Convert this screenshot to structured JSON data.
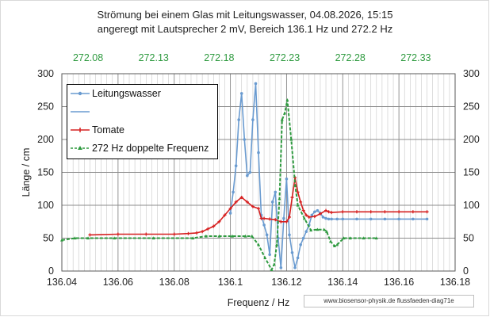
{
  "chart_data": {
    "type": "line",
    "title": [
      "Strömung bei einem Glas mit  Leitungswasser, 04.08.2026, 15:15",
      "angeregt mit Lautsprecher 2 mV, Bereich 136.1 Hz und 272.2 Hz"
    ],
    "xlabel": "Frequenz / Hz",
    "ylabel": "Länge / cm",
    "xlim": [
      136.04,
      136.18
    ],
    "ylim": [
      0,
      300
    ],
    "x_ticks": [
      "136.04",
      "136.06",
      "136.08",
      "136.1",
      "136.12",
      "136.14",
      "136.16",
      "136.18"
    ],
    "y_ticks": [
      "0",
      "50",
      "100",
      "150",
      "200",
      "250",
      "300"
    ],
    "top_axis": {
      "xlim": [
        272.06,
        272.36
      ],
      "tick_labels": [
        "272.08",
        "272.13",
        "272.18",
        "272.23",
        "272.28",
        "272.33"
      ],
      "tick_values": [
        272.08,
        272.13,
        272.18,
        272.23,
        272.28,
        272.33
      ],
      "color": "#2e9a3f"
    },
    "grid": true,
    "legend_position": "top-left",
    "series": [
      {
        "name": "Leitungswasser",
        "color": "#6a9bd0",
        "marker": "circle",
        "axis": "bottom",
        "x": [
          136.1,
          136.101,
          136.102,
          136.103,
          136.104,
          136.105,
          136.106,
          136.107,
          136.108,
          136.109,
          136.11,
          136.111,
          136.112,
          136.113,
          136.114,
          136.115,
          136.116,
          136.117,
          136.118,
          136.119,
          136.12,
          136.121,
          136.122,
          136.123,
          136.124,
          136.125,
          136.126,
          136.127,
          136.128,
          136.129,
          136.13,
          136.131,
          136.132,
          136.133,
          136.134,
          136.135,
          136.136,
          136.138,
          136.14,
          136.145,
          136.15,
          136.155,
          136.16,
          136.165,
          136.17
        ],
        "y": [
          88,
          120,
          160,
          230,
          270,
          200,
          145,
          150,
          230,
          285,
          180,
          85,
          70,
          55,
          25,
          105,
          120,
          50,
          5,
          80,
          140,
          55,
          28,
          5,
          20,
          40,
          50,
          60,
          70,
          85,
          90,
          92,
          88,
          82,
          80,
          79,
          79,
          79,
          79,
          79,
          79,
          79,
          79,
          79,
          79
        ]
      },
      {
        "name": "Tomate",
        "color": "#d62020",
        "marker": "plus",
        "axis": "bottom",
        "x": [
          136.05,
          136.06,
          136.07,
          136.08,
          136.085,
          136.088,
          136.09,
          136.092,
          136.094,
          136.096,
          136.098,
          136.1,
          136.102,
          136.104,
          136.106,
          136.108,
          136.11,
          136.111,
          136.112,
          136.114,
          136.116,
          136.118,
          136.12,
          136.121,
          136.122,
          136.123,
          136.124,
          136.125,
          136.126,
          136.127,
          136.128,
          136.13,
          136.132,
          136.134,
          136.135,
          136.136,
          136.14,
          136.145,
          136.15,
          136.155,
          136.16,
          136.165,
          136.17
        ],
        "y": [
          55,
          56,
          56,
          56,
          57,
          58,
          60,
          64,
          68,
          75,
          85,
          95,
          105,
          112,
          105,
          98,
          95,
          80,
          80,
          79,
          78,
          75,
          75,
          82,
          112,
          142,
          120,
          105,
          92,
          85,
          82,
          83,
          87,
          92,
          90,
          89,
          90,
          90,
          90,
          90,
          90,
          90,
          90
        ]
      },
      {
        "name": "272 Hz doppelte Frequenz",
        "color": "#2e9a3f",
        "marker": "triangle",
        "axis": "top",
        "x": [
          272.06,
          272.07,
          272.08,
          272.1,
          272.13,
          272.16,
          272.17,
          272.18,
          272.19,
          272.2,
          272.205,
          272.21,
          272.215,
          272.22,
          272.222,
          272.224,
          272.226,
          272.228,
          272.23,
          272.232,
          272.235,
          272.238,
          272.24,
          272.245,
          272.25,
          272.255,
          272.26,
          272.262,
          272.265,
          272.268,
          272.27,
          272.275,
          272.28,
          272.29,
          272.3
        ],
        "y": [
          47,
          50,
          50,
          50,
          50,
          50,
          53,
          53,
          53,
          53,
          53,
          40,
          20,
          2,
          10,
          40,
          110,
          230,
          240,
          260,
          200,
          130,
          100,
          80,
          62,
          63,
          63,
          60,
          45,
          38,
          40,
          50,
          50,
          50,
          50
        ]
      }
    ],
    "legend": {
      "entries": [
        "Leitungswasser",
        "",
        "Tomate",
        "272 Hz doppelte Frequenz"
      ]
    }
  },
  "credit": "www.biosensor-physik.de  flussfaeden-diag71e"
}
